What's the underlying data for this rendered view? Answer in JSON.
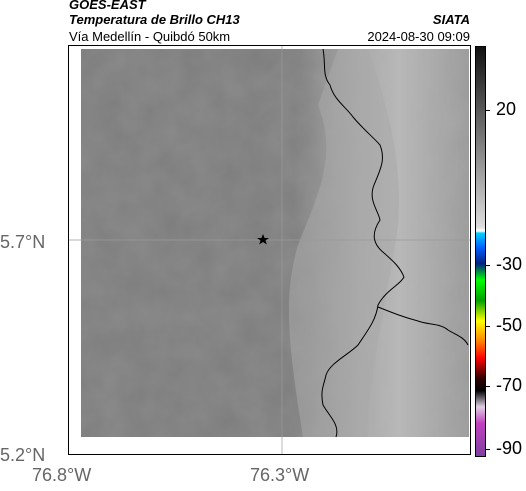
{
  "header": {
    "satellite": "GOES-EAST",
    "product": "Temperatura de Brillo CH13",
    "route": "Vía Medellín - Quibdó 50km",
    "org": "SIATA",
    "timestamp": "2024-08-30 09:09"
  },
  "map": {
    "lat_labels": [
      "5.7°N",
      "5.2°N"
    ],
    "lon_labels": [
      "76.8°W",
      "76.3°W"
    ],
    "marker": "star-icon",
    "colors": {
      "land": "#797979",
      "ridge": "#b5b5b5",
      "border": "#000000"
    }
  },
  "colorbar": {
    "labels": [
      "20",
      "-30",
      "-50",
      "-70",
      "-90"
    ],
    "unit_values": [
      20,
      -30,
      -50,
      -70,
      -90
    ]
  }
}
